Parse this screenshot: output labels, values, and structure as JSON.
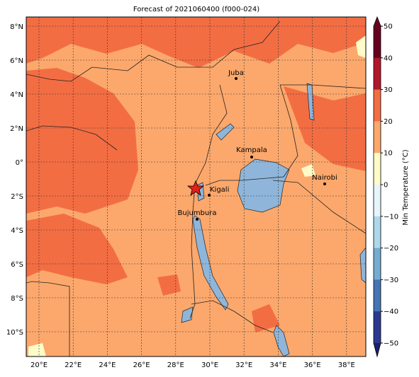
{
  "title": "Forecast of 2021060400 (f000-024)",
  "lat_labels": [
    "8°N",
    "6°N",
    "4°N",
    "2°N",
    "0°",
    "2°S",
    "4°S",
    "6°S",
    "8°S",
    "10°S"
  ],
  "lon_labels": [
    "20°E",
    "22°E",
    "24°E",
    "26°E",
    "28°E",
    "30°E",
    "32°E",
    "34°E",
    "36°E",
    "38°E"
  ],
  "cities": [
    "Juba",
    "Kampala",
    "Kigali",
    "Bujumbura",
    "Nairobi"
  ],
  "colorbar": {
    "label": "Min Temperature (°C)",
    "ticks": [
      "50",
      "40",
      "30",
      "20",
      "10",
      "0",
      "−10",
      "−20",
      "−30",
      "−40",
      "−50"
    ]
  }
}
